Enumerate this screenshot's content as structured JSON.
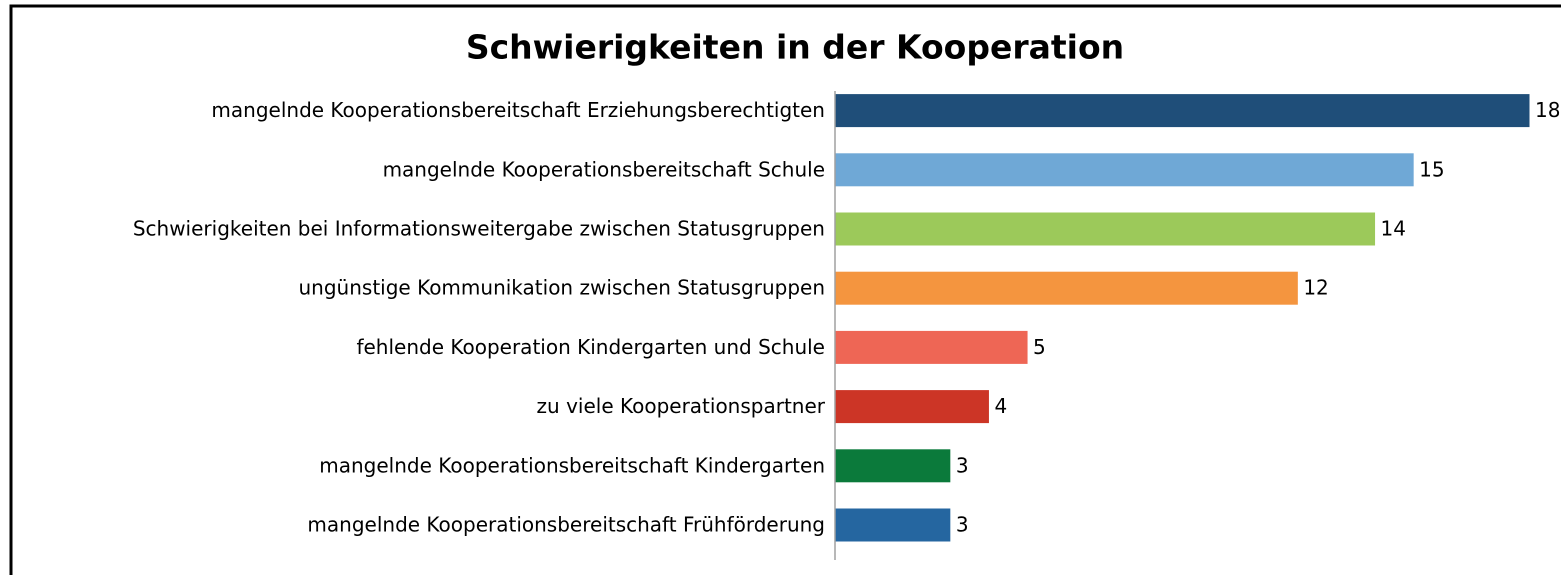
{
  "chart_data": {
    "type": "bar",
    "orientation": "horizontal",
    "title": "Schwierigkeiten in der Kooperation",
    "categories": [
      "mangelnde Kooperationsbereitschaft Erziehungsberechtigten",
      "mangelnde Kooperationsbereitschaft Schule",
      "Schwierigkeiten bei Informationsweitergabe zwischen Statusgruppen",
      "ungünstige Kommunikation zwischen Statusgruppen",
      "fehlende Kooperation Kindergarten und Schule",
      "zu viele Kooperationspartner",
      "mangelnde Kooperationsbereitschaft Kindergarten",
      "mangelnde Kooperationsbereitschaft Frühförderung"
    ],
    "values": [
      18,
      15,
      14,
      12,
      5,
      4,
      3,
      3
    ],
    "colors": [
      "#1f4e79",
      "#6fa8d6",
      "#9cc95a",
      "#f4953f",
      "#ee6655",
      "#cc3526",
      "#0b7a3b",
      "#2566a0"
    ],
    "xlim": [
      0,
      18
    ]
  }
}
